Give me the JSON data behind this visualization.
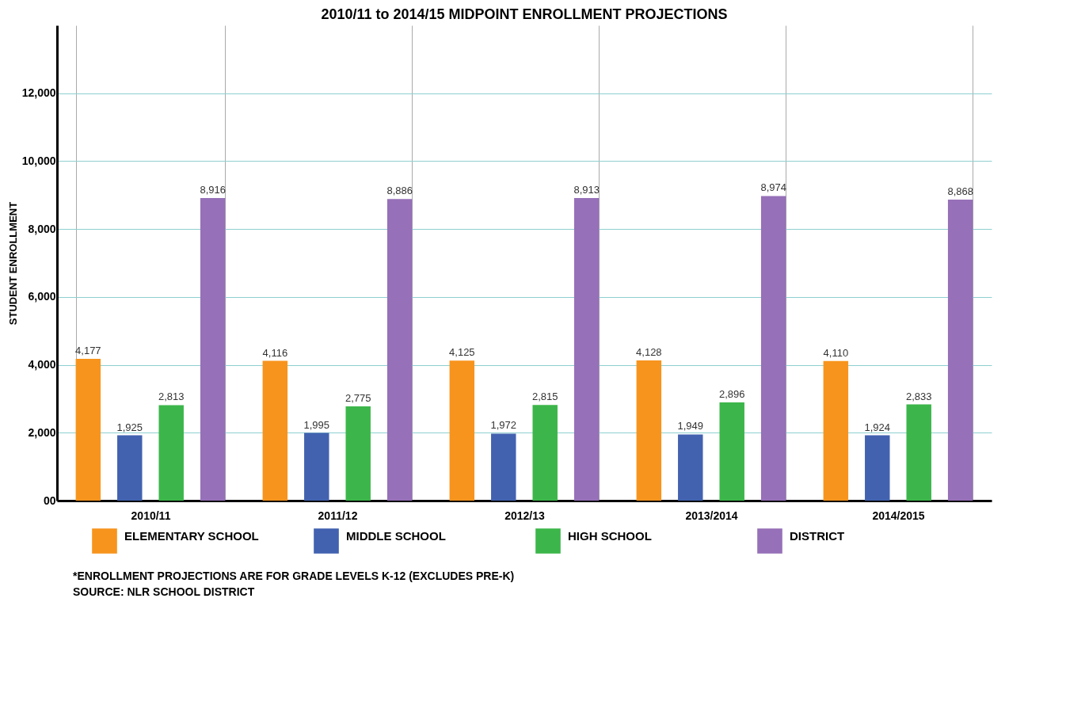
{
  "chart_data": {
    "type": "bar",
    "title": "2010/11 to 2014/15 MIDPOINT ENROLLMENT PROJECTIONS",
    "ylabel": "STUDENT ENROLLMENT",
    "categories": [
      "2010/11",
      "2011/12",
      "2012/13",
      "2013/2014",
      "2014/2015"
    ],
    "series": [
      {
        "name": "ELEMENTARY SCHOOL",
        "color": "#f7941d",
        "values": [
          4177,
          4116,
          4125,
          4128,
          4110
        ],
        "value_labels": [
          "4,177",
          "4,116",
          "4,125",
          "4,128",
          "4,110"
        ]
      },
      {
        "name": "MIDDLE SCHOOL",
        "color": "#4262b0",
        "values": [
          1925,
          1995,
          1972,
          1949,
          1924
        ],
        "value_labels": [
          "1,925",
          "1,995",
          "1,972",
          "1,949",
          "1,924"
        ]
      },
      {
        "name": "HIGH SCHOOL",
        "color": "#3cb64a",
        "values": [
          2813,
          2775,
          2815,
          2896,
          2833
        ],
        "value_labels": [
          "2,813",
          "2,775",
          "2,815",
          "2,896",
          "2,833"
        ]
      },
      {
        "name": "DISTRICT",
        "color": "#9670b8",
        "values": [
          8916,
          8886,
          8913,
          8974,
          8868
        ],
        "value_labels": [
          "8,916",
          "8,886",
          "8,913",
          "8,974",
          "8,868"
        ]
      }
    ],
    "ylim": [
      0,
      14000
    ],
    "yticks": [
      {
        "value": 0,
        "label": "00"
      },
      {
        "value": 2000,
        "label": "2,000"
      },
      {
        "value": 4000,
        "label": "4,000"
      },
      {
        "value": 6000,
        "label": "6,000"
      },
      {
        "value": 8000,
        "label": "8,000"
      },
      {
        "value": 10000,
        "label": "10,000"
      },
      {
        "value": 12000,
        "label": "12,000"
      }
    ],
    "grid": true,
    "legend": "bottom",
    "annotations": [
      "*ENROLLMENT PROJECTIONS ARE FOR GRADE LEVELS K-12 (EXCLUDES PRE-K)",
      "SOURCE: NLR SCHOOL DISTRICT"
    ]
  }
}
